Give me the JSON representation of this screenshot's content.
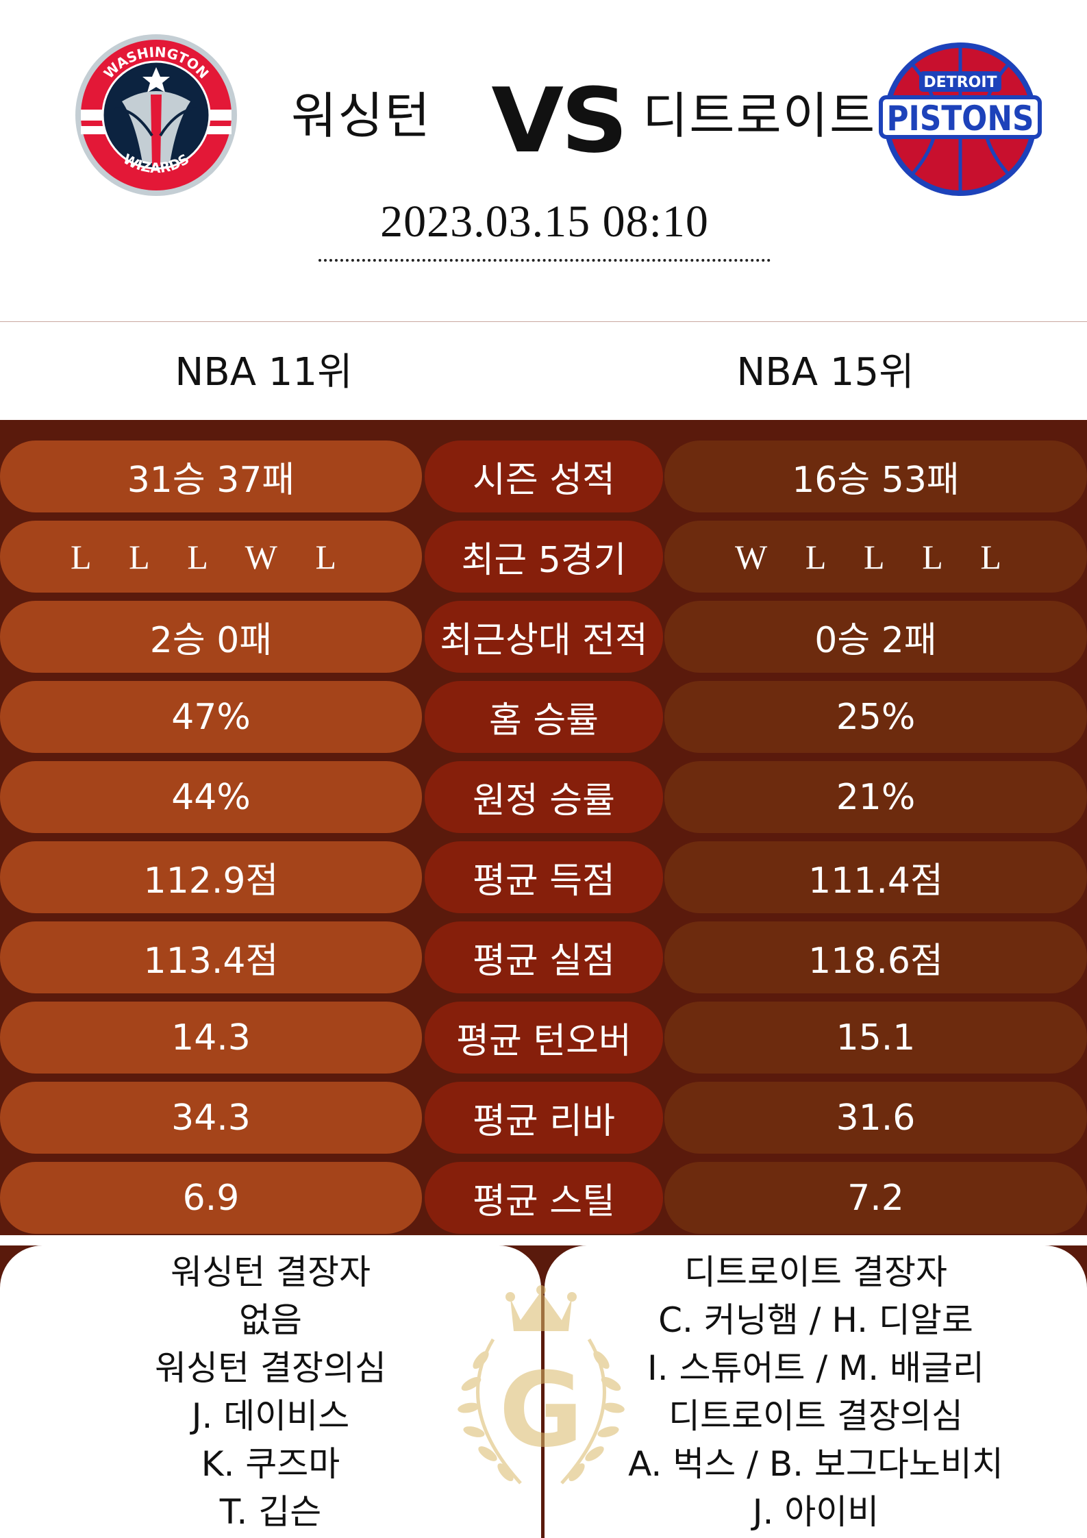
{
  "header": {
    "home_team": "워싱턴",
    "vs": "VS",
    "away_team": "디트로이트",
    "datetime": "2023.03.15  08:10",
    "home_logo": {
      "icon": "wizards-logo-icon",
      "text_top": "WASHINGTON",
      "text_bottom": "WIZARDS"
    },
    "away_logo": {
      "icon": "pistons-logo-icon",
      "text_top": "DETROIT",
      "text_main": "PISTONS"
    }
  },
  "ranks": {
    "home": "NBA 11위",
    "away": "NBA 15위"
  },
  "stats": [
    {
      "home": "31승 37패",
      "label": "시즌 성적",
      "away": "16승 53패"
    },
    {
      "home": "L L L W L",
      "label": "최근 5경기",
      "away": "W L L L L"
    },
    {
      "home": "2승 0패",
      "label": "최근상대 전적",
      "away": "0승 2패"
    },
    {
      "home": "47%",
      "label": "홈 승률",
      "away": "25%"
    },
    {
      "home": "44%",
      "label": "원정 승률",
      "away": "21%"
    },
    {
      "home": "112.9점",
      "label": "평균 득점",
      "away": "111.4점"
    },
    {
      "home": "113.4점",
      "label": "평균 실점",
      "away": "118.6점"
    },
    {
      "home": "14.3",
      "label": "평균 턴오버",
      "away": "15.1"
    },
    {
      "home": "34.3",
      "label": "평균 리바",
      "away": "31.6"
    },
    {
      "home": "6.9",
      "label": "평균 스틸",
      "away": "7.2"
    }
  ],
  "missing": {
    "home": [
      "워싱턴 결장자",
      "없음",
      "워싱턴 결장의심",
      "J. 데이비스",
      "K. 쿠즈마",
      "T. 깁슨"
    ],
    "away": [
      "디트로이트 결장자",
      "C. 커닝햄 / H. 디알로",
      "I. 스튜어트 / M. 배글리",
      "디트로이트 결장의심",
      "A. 벅스 / B. 보그다노비치",
      "J. 아이비"
    ]
  },
  "emblem": {
    "icon": "gold-crown-laurel-g-icon",
    "letter": "G"
  },
  "colors": {
    "background_dark": "#5a1a0c",
    "home_pill": "#a5441a",
    "label_pill": "#861f0b",
    "away_pill": "#6d2b0e",
    "wizards_navy": "#0c2340",
    "wizards_red": "#e31837",
    "pistons_red": "#c8102e",
    "pistons_blue": "#1d42ba",
    "gold": "#d9b96a"
  }
}
